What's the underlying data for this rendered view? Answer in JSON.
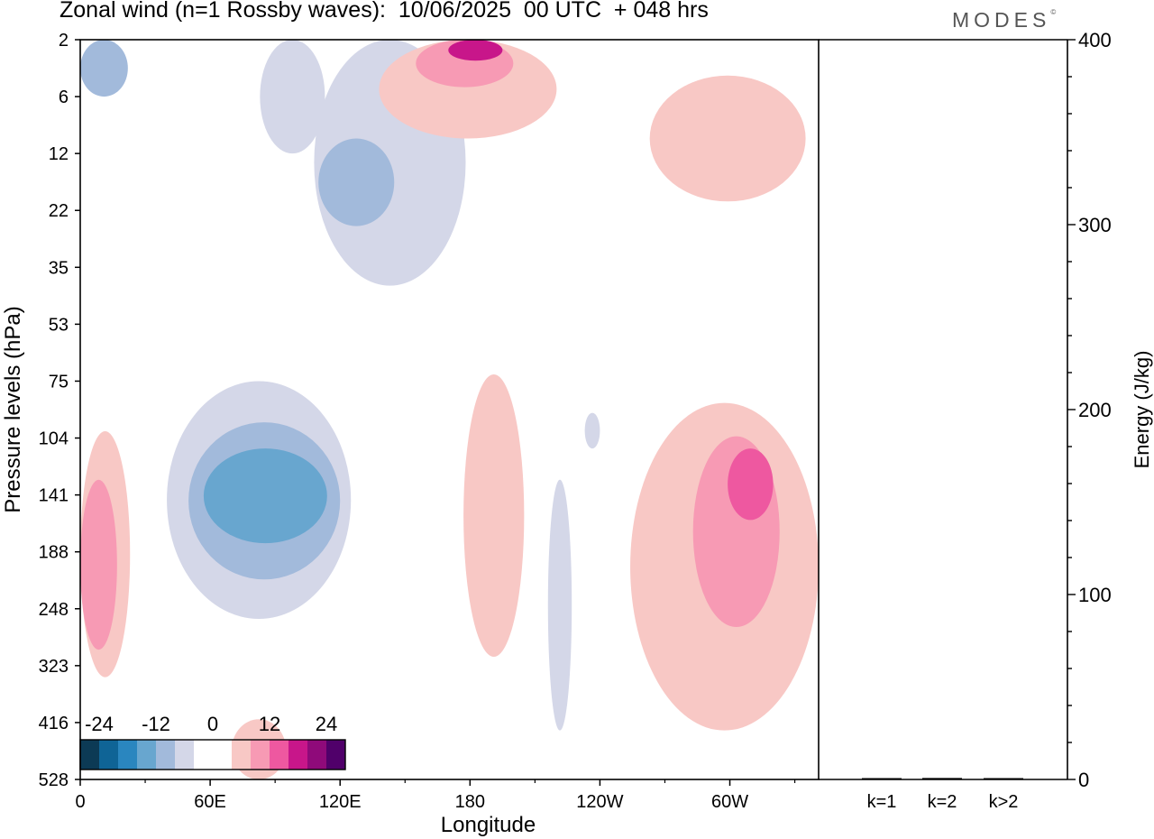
{
  "header": {
    "title": "Zonal wind (n=1 Rossby waves):  10/06/2025  00 UTC  + 048 hrs",
    "brand": "MODES",
    "brand_mark": "©"
  },
  "colors": {
    "neg": [
      "#0c3a55",
      "#0f6496",
      "#2a86bf",
      "#68a6cf",
      "#a2badb",
      "#d4d7e8"
    ],
    "zero": "#ffffff",
    "pos": [
      "#f8c8c5",
      "#f79ab4",
      "#ee58a0",
      "#c8168a",
      "#8f0a7a",
      "#50006a"
    ]
  },
  "chart_data": [
    {
      "type": "heatmap",
      "title": "Zonal wind (n=1 Rossby waves):  10/06/2025  00 UTC  + 048 hrs",
      "xlabel": "Longitude",
      "ylabel": "Pressure levels (hPa)",
      "x_ticks": [
        "0",
        "60E",
        "120E",
        "180",
        "120W",
        "60W"
      ],
      "x_tick_degrees": [
        0,
        60,
        120,
        180,
        240,
        300
      ],
      "xlim_degrees": [
        0,
        341
      ],
      "y_ticks": [
        "2",
        "6",
        "12",
        "22",
        "35",
        "53",
        "75",
        "104",
        "141",
        "188",
        "248",
        "323",
        "416",
        "528"
      ],
      "y_reversed": true,
      "colorbar": {
        "tick_labels": [
          "-24",
          "-12",
          "0",
          "12",
          "24"
        ],
        "tick_values": [
          -24,
          -12,
          0,
          12,
          24
        ],
        "levels": [
          -30,
          -25,
          -20,
          -15,
          -10,
          -5,
          5,
          10,
          15,
          20,
          25,
          30
        ]
      },
      "features": [
        {
          "lon": [
            0,
            22
          ],
          "p": [
            2,
            6
          ],
          "value": -10
        },
        {
          "lon": [
            83,
            113
          ],
          "p": [
            2,
            12
          ],
          "value": -8
        },
        {
          "lon": [
            108,
            178
          ],
          "p": [
            2,
            40
          ],
          "value": -5
        },
        {
          "lon": [
            110,
            145
          ],
          "p": [
            10,
            25
          ],
          "value": -11
        },
        {
          "lon": [
            138,
            220
          ],
          "p": [
            2,
            10
          ],
          "value": 6
        },
        {
          "lon": [
            155,
            200
          ],
          "p": [
            2,
            5
          ],
          "value": 14
        },
        {
          "lon": [
            170,
            195
          ],
          "p": [
            2,
            3
          ],
          "value": 21
        },
        {
          "lon": [
            263,
            335
          ],
          "p": [
            4,
            20
          ],
          "value": 6
        },
        {
          "lon": [
            0,
            23
          ],
          "p": [
            100,
            340
          ],
          "value": 7
        },
        {
          "lon": [
            0,
            17
          ],
          "p": [
            130,
            300
          ],
          "value": 13
        },
        {
          "lon": [
            40,
            125
          ],
          "p": [
            75,
            260
          ],
          "value": -6
        },
        {
          "lon": [
            50,
            120
          ],
          "p": [
            95,
            215
          ],
          "value": -11
        },
        {
          "lon": [
            57,
            114
          ],
          "p": [
            110,
            180
          ],
          "value": -16
        },
        {
          "lon": [
            177,
            205
          ],
          "p": [
            72,
            310
          ],
          "value": 6
        },
        {
          "lon": [
            216,
            227
          ],
          "p": [
            130,
            430
          ],
          "value": -5
        },
        {
          "lon": [
            233,
            240
          ],
          "p": [
            90,
            110
          ],
          "value": -5
        },
        {
          "lon": [
            254,
            341
          ],
          "p": [
            85,
            430
          ],
          "value": 6
        },
        {
          "lon": [
            283,
            323
          ],
          "p": [
            103,
            270
          ],
          "value": 11
        },
        {
          "lon": [
            299,
            320
          ],
          "p": [
            110,
            160
          ],
          "value": 16
        },
        {
          "lon": [
            70,
            95
          ],
          "p": [
            410,
            528
          ],
          "value": 5
        }
      ]
    },
    {
      "type": "bar",
      "categories": [
        "k=1",
        "k=2",
        "k>2"
      ],
      "values": [
        0.3,
        0.8,
        0.4
      ],
      "ylabel": "Energy (J/kg)",
      "ylim": [
        0,
        400
      ],
      "y_ticks": [
        0,
        100,
        200,
        300,
        400
      ],
      "y_minor_step": 20
    }
  ]
}
